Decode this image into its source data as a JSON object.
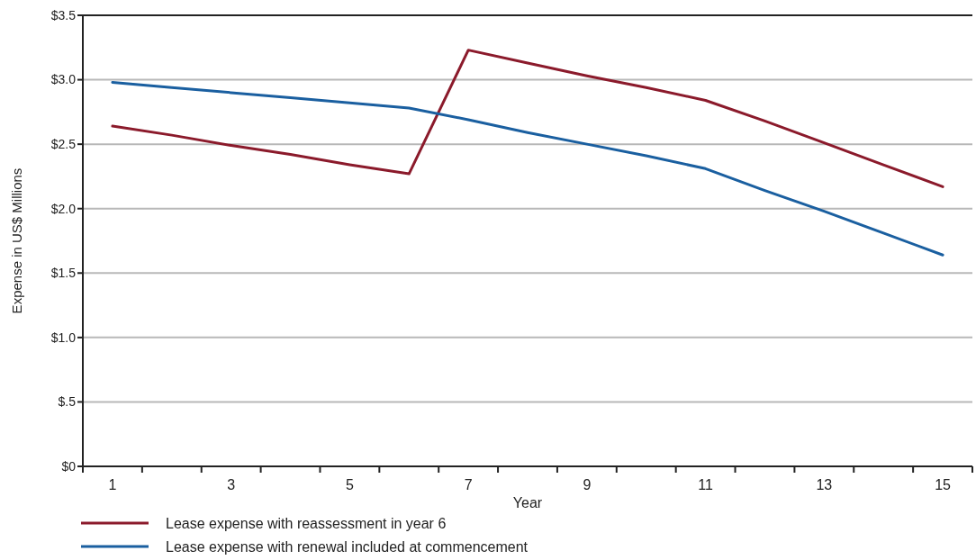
{
  "chart_data": {
    "type": "line",
    "xlabel": "Year",
    "ylabel": "Expense in US$ Millions",
    "categories": [
      "1",
      null,
      "3",
      null,
      "5",
      null,
      "7",
      null,
      "9",
      null,
      "11",
      null,
      "13",
      null,
      "15"
    ],
    "series": [
      {
        "name": "Lease expense with reassessment in year 6",
        "color": "#8b1a2b",
        "values": [
          2.64,
          2.57,
          2.49,
          2.42,
          2.34,
          2.27,
          3.23,
          3.13,
          3.03,
          2.94,
          2.84,
          2.68,
          2.51,
          2.34,
          2.17
        ]
      },
      {
        "name": "Lease expense with renewal included at commencement",
        "color": "#1a5fa0",
        "values": [
          2.98,
          2.94,
          2.9,
          2.86,
          2.82,
          2.78,
          2.69,
          2.59,
          2.5,
          2.41,
          2.31,
          2.14,
          1.98,
          1.81,
          1.64
        ]
      }
    ],
    "ylim": [
      0,
      3.5
    ],
    "yticks": [
      {
        "value": 0,
        "label": "$0"
      },
      {
        "value": 0.5,
        "label": "$.5"
      },
      {
        "value": 1,
        "label": "$1.0"
      },
      {
        "value": 1.5,
        "label": "$1.5"
      },
      {
        "value": 2,
        "label": "$2.0"
      },
      {
        "value": 2.5,
        "label": "$2.5"
      },
      {
        "value": 3,
        "label": "$3.0"
      },
      {
        "value": 3.5,
        "label": "$3.5"
      }
    ],
    "grid": "y",
    "legend": "bottom",
    "marker": "none",
    "line_style": "solid"
  }
}
